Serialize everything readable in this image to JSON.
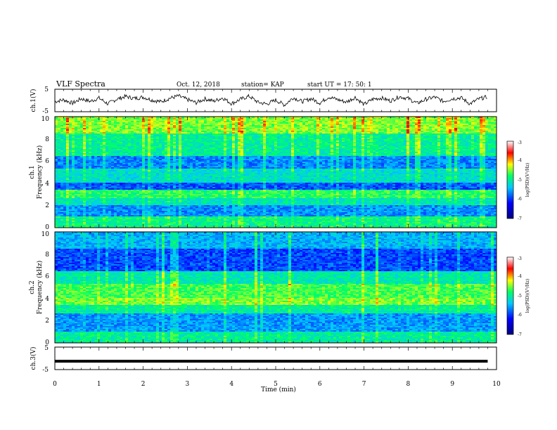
{
  "header": {
    "title": "VLF Spectra",
    "date": "Oct. 12, 2018",
    "station": "station= KAP",
    "start": "start  UT  =   17: 50: 1"
  },
  "colorbar": {
    "label": "log(PSD)(V²/Hz)",
    "ticks": [
      "-3",
      "-4",
      "-5",
      "-6",
      "-7"
    ]
  },
  "chart_data": [
    {
      "type": "line",
      "name": "ch1-waveform",
      "ylabel": "ch.1(V)",
      "ylim": [
        -5,
        5
      ],
      "xlim": [
        0,
        10
      ],
      "yticks": [
        "5",
        "-5"
      ],
      "x": [
        0.0,
        0.2,
        0.4,
        0.6,
        0.8,
        1.0,
        1.2,
        1.4,
        1.6,
        1.8,
        2.0,
        2.2,
        2.4,
        2.6,
        2.8,
        3.0,
        3.2,
        3.4,
        3.6,
        3.8,
        4.0,
        4.2,
        4.4,
        4.6,
        4.8,
        5.0,
        5.2,
        5.4,
        5.6,
        5.8,
        6.0,
        6.2,
        6.4,
        6.6,
        6.8,
        7.0,
        7.2,
        7.4,
        7.6,
        7.8,
        8.0,
        8.2,
        8.4,
        8.6,
        8.8,
        9.0,
        9.2,
        9.4,
        9.6,
        9.8
      ],
      "y": [
        -0.5,
        0.3,
        -1.2,
        0.8,
        -0.4,
        1.1,
        -1.5,
        0.6,
        1.8,
        0.9,
        1.5,
        0.2,
        -0.6,
        1.0,
        2.0,
        0.4,
        -1.0,
        0.7,
        -0.3,
        1.2,
        -1.4,
        0.5,
        1.9,
        -0.8,
        -1.6,
        0.2,
        -2.0,
        1.3,
        -0.5,
        0.8,
        -1.1,
        1.6,
        0.4,
        -0.7,
        1.4,
        -1.8,
        0.6,
        1.1,
        -0.2,
        1.7,
        0.9,
        -1.3,
        0.5,
        1.5,
        -0.4,
        0.8,
        1.2,
        -1.5,
        0.7,
        1.6
      ]
    },
    {
      "type": "heatmap",
      "name": "ch1-spectrogram",
      "ylabel": "ch.1\nFrequency (kHz)",
      "ylim": [
        0,
        10
      ],
      "xlim": [
        0,
        10
      ],
      "yticks": [
        "0",
        "2",
        "4",
        "6",
        "8",
        "10"
      ],
      "color_range": [
        -7,
        -3
      ]
    },
    {
      "type": "heatmap",
      "name": "ch2-spectrogram",
      "ylabel": "ch.2\nFrequency (kHz)",
      "ylim": [
        0,
        10
      ],
      "xlim": [
        0,
        10
      ],
      "yticks": [
        "0",
        "2",
        "4",
        "6",
        "8",
        "10"
      ],
      "color_range": [
        -7,
        -3
      ]
    },
    {
      "type": "line",
      "name": "ch3-waveform",
      "ylabel": "ch.3(V)",
      "ylim": [
        -5,
        5
      ],
      "xlim": [
        0,
        10
      ],
      "yticks": [
        "5",
        "-5"
      ],
      "x": [
        0,
        9.8
      ],
      "y": [
        -1.3,
        -1.3
      ]
    }
  ],
  "xaxis": {
    "label": "Time  (min)",
    "ticks": [
      "0",
      "1",
      "2",
      "3",
      "4",
      "5",
      "6",
      "7",
      "8",
      "9",
      "10"
    ]
  }
}
